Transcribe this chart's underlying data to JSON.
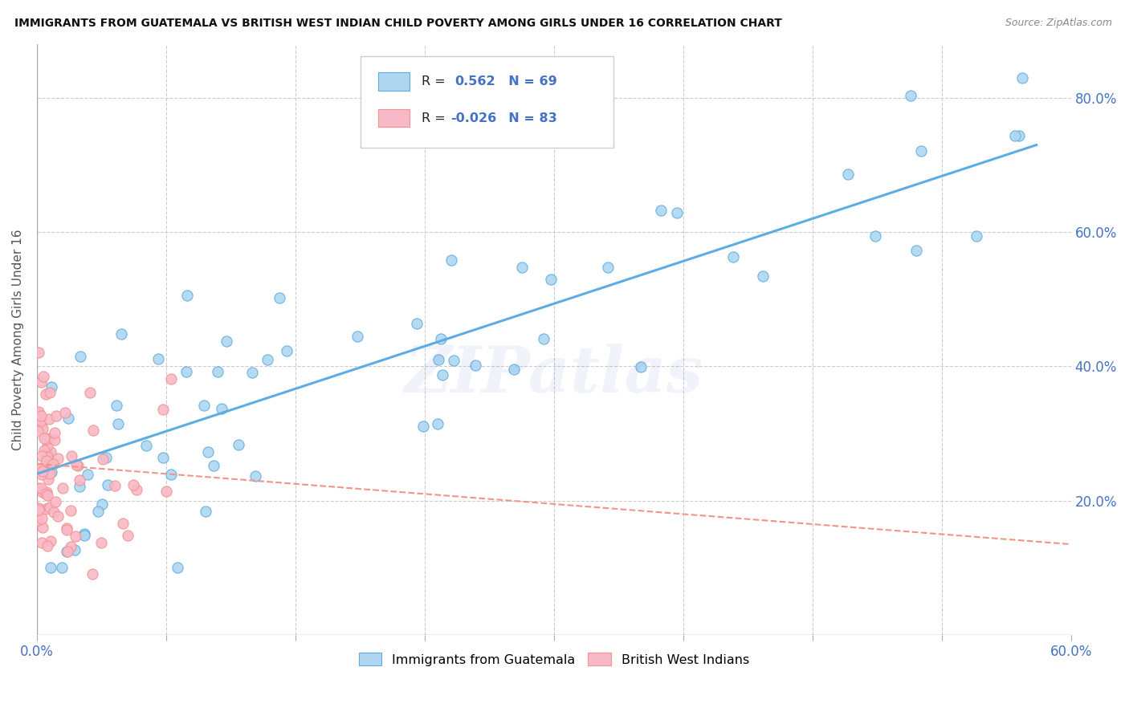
{
  "title": "IMMIGRANTS FROM GUATEMALA VS BRITISH WEST INDIAN CHILD POVERTY AMONG GIRLS UNDER 16 CORRELATION CHART",
  "source": "Source: ZipAtlas.com",
  "ylabel": "Child Poverty Among Girls Under 16",
  "right_yticks": [
    0.2,
    0.4,
    0.6,
    0.8
  ],
  "right_ytick_labels": [
    "20.0%",
    "40.0%",
    "60.0%",
    "80.0%"
  ],
  "xlim": [
    0.0,
    0.6
  ],
  "ylim": [
    0.0,
    0.88
  ],
  "blue_R": 0.562,
  "blue_N": 69,
  "pink_R": -0.026,
  "pink_N": 83,
  "blue_fill": "#AED6F1",
  "pink_fill": "#F9B8C8",
  "blue_edge": "#5DADE2",
  "pink_edge": "#F1948A",
  "blue_line": "#5DADE2",
  "pink_line": "#F1948A",
  "watermark": "ZIPatlas",
  "legend_label_blue": "Immigrants from Guatemala",
  "legend_label_pink": "British West Indians",
  "blue_trend_x0": 0.0,
  "blue_trend_y0": 0.24,
  "blue_trend_x1": 0.58,
  "blue_trend_y1": 0.73,
  "pink_trend_x0": 0.0,
  "pink_trend_y0": 0.255,
  "pink_trend_x1": 0.6,
  "pink_trend_y1": 0.135
}
